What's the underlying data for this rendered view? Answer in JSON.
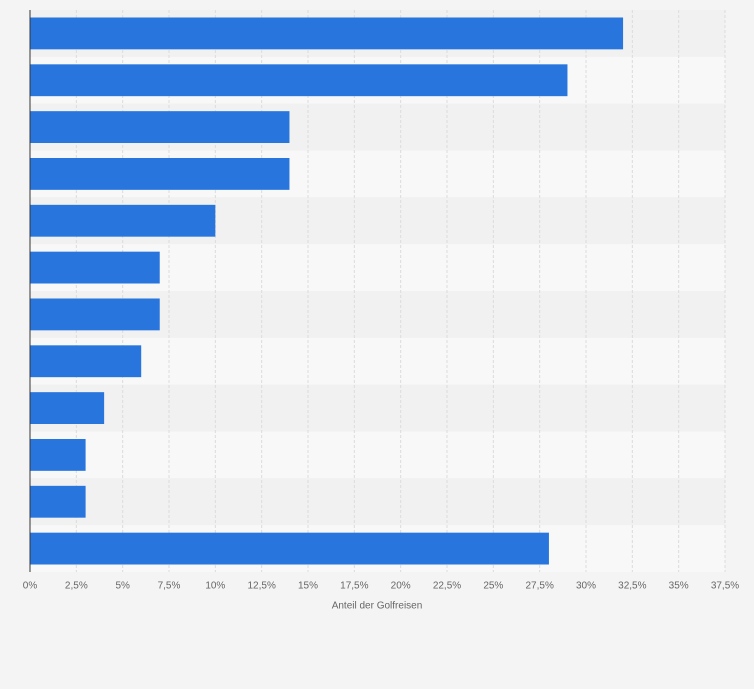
{
  "chart_data": {
    "type": "bar",
    "orientation": "horizontal",
    "x_label": "Anteil der Golfreisen",
    "categories": [
      null,
      null,
      null,
      null,
      null,
      null,
      null,
      null,
      null,
      null,
      null,
      null
    ],
    "values": [
      32,
      29,
      14,
      14,
      10,
      7,
      7,
      6,
      4,
      3,
      3,
      28
    ],
    "color": "#2876dd",
    "xlim": [
      0,
      37.5
    ],
    "xticks": [
      {
        "value": 0,
        "label": "0%"
      },
      {
        "value": 2.5,
        "label": "2,5%"
      },
      {
        "value": 5,
        "label": "5%"
      },
      {
        "value": 7.5,
        "label": "7,5%"
      },
      {
        "value": 10,
        "label": "10%"
      },
      {
        "value": 12.5,
        "label": "12,5%"
      },
      {
        "value": 15,
        "label": "15%"
      },
      {
        "value": 17.5,
        "label": "17,5%"
      },
      {
        "value": 20,
        "label": "20%"
      },
      {
        "value": 22.5,
        "label": "22,5%"
      },
      {
        "value": 25,
        "label": "25%"
      },
      {
        "value": 27.5,
        "label": "27,5%"
      },
      {
        "value": 30,
        "label": "30%"
      },
      {
        "value": 32.5,
        "label": "32,5%"
      },
      {
        "value": 35,
        "label": "35%"
      },
      {
        "value": 37.5,
        "label": "37,5%"
      }
    ],
    "grid": true
  }
}
